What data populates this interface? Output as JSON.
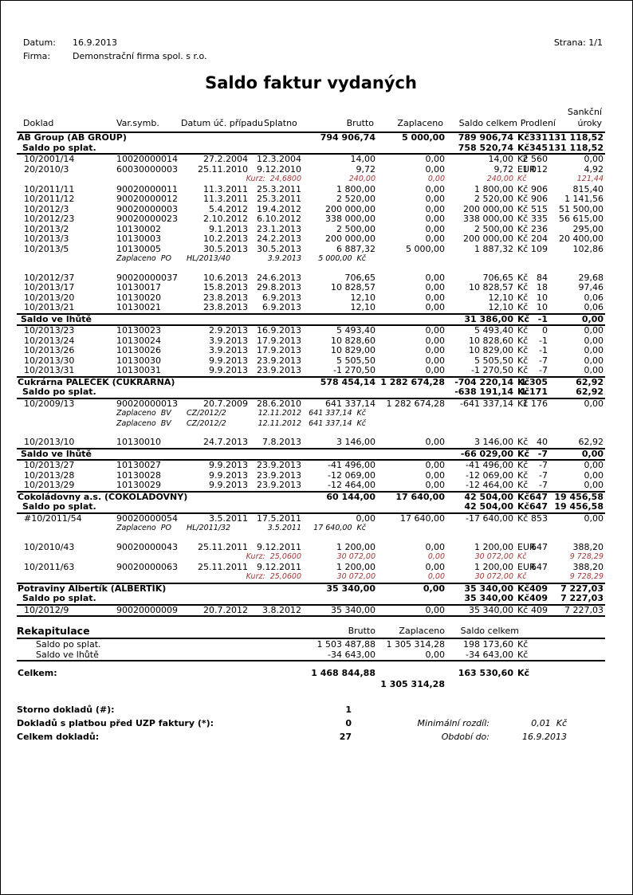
{
  "header": {
    "date_label": "Datum:",
    "date_value": "16.9.2013",
    "firm_label": "Firma:",
    "firm_value": "Demonstrační firma spol. s r.o.",
    "page_info": "Strana: 1/1",
    "title": "Saldo faktur vydaných"
  },
  "colors": {
    "kurz_red": "#A03636"
  },
  "table": {
    "head": {
      "sankcni": "Sankční",
      "doklad": "Doklad",
      "varsymb": "Var.symb.",
      "datum": "Datum úč. případu",
      "splatno": "Splatno",
      "brutto": "Brutto",
      "zaplaceno": "Zaplaceno",
      "saldo": "Saldo celkem",
      "prodleni": "Prodlení",
      "uroky": "úroky"
    },
    "rows": [
      {
        "t": "group",
        "name": "AB Group (AB GROUP)",
        "brutto": "794 906,74",
        "zapl": "5 000,00",
        "saldo": "789 906,74",
        "cur": "Kč",
        "prod": "331",
        "uroky": "131 118,52"
      },
      {
        "t": "gsub",
        "label": "Saldo po splat.",
        "saldo": "758 520,74",
        "cur": "Kč",
        "prod": "345",
        "uroky": "131 118,52"
      },
      {
        "t": "hr"
      },
      {
        "t": "d",
        "doklad": "10/2001/14",
        "vs": "10020000014",
        "datum": "27.2.2004",
        "splatno": "12.3.2004",
        "brutto": "14,00",
        "zapl": "0,00",
        "saldo": "14,00",
        "cur": "Kč",
        "prod": "2 560",
        "uroky": "0,00"
      },
      {
        "t": "d",
        "doklad": "20/2010/3",
        "vs": "60030000003",
        "datum": "25.11.2010",
        "splatno": "9.12.2010",
        "brutto": "9,72",
        "zapl": "0,00",
        "saldo": "9,72",
        "cur": "EUR",
        "prod": "1 012",
        "uroky": "4,92"
      },
      {
        "t": "kurz",
        "label": "Kurz:  24,6800",
        "brutto": "240,00",
        "zapl": "0,00",
        "saldo": "240,00",
        "cur": "Kč",
        "uroky": "121,44"
      },
      {
        "t": "d",
        "doklad": "10/2011/11",
        "vs": "90020000011",
        "datum": "11.3.2011",
        "splatno": "25.3.2011",
        "brutto": "1 800,00",
        "zapl": "0,00",
        "saldo": "1 800,00",
        "cur": "Kč",
        "prod": "906",
        "uroky": "815,40"
      },
      {
        "t": "d",
        "doklad": "10/2011/12",
        "vs": "90020000012",
        "datum": "11.3.2011",
        "splatno": "25.3.2011",
        "brutto": "2 520,00",
        "zapl": "0,00",
        "saldo": "2 520,00",
        "cur": "Kč",
        "prod": "906",
        "uroky": "1 141,56"
      },
      {
        "t": "d",
        "doklad": "10/2012/3",
        "vs": "90020000003",
        "datum": "5.4.2012",
        "splatno": "19.4.2012",
        "brutto": "200 000,00",
        "zapl": "0,00",
        "saldo": "200 000,00",
        "cur": "Kč",
        "prod": "515",
        "uroky": "51 500,00"
      },
      {
        "t": "d",
        "doklad": "10/2012/23",
        "vs": "90020000023",
        "datum": "2.10.2012",
        "splatno": "6.10.2012",
        "brutto": "338 000,00",
        "zapl": "0,00",
        "saldo": "338 000,00",
        "cur": "Kč",
        "prod": "335",
        "uroky": "56 615,00"
      },
      {
        "t": "d",
        "doklad": "10/2013/2",
        "vs": "10130002",
        "datum": "9.1.2013",
        "splatno": "23.1.2013",
        "brutto": "2 500,00",
        "zapl": "0,00",
        "saldo": "2 500,00",
        "cur": "Kč",
        "prod": "236",
        "uroky": "295,00"
      },
      {
        "t": "d",
        "doklad": "10/2013/3",
        "vs": "10130003",
        "datum": "10.2.2013",
        "splatno": "24.2.2013",
        "brutto": "200 000,00",
        "zapl": "0,00",
        "saldo": "200 000,00",
        "cur": "Kč",
        "prod": "204",
        "uroky": "20 400,00"
      },
      {
        "t": "d",
        "doklad": "10/2013/5",
        "vs": "10130005",
        "datum": "30.5.2013",
        "splatno": "30.5.2013",
        "brutto": "6 887,32",
        "zapl": "5 000,00",
        "saldo": "1 887,32",
        "cur": "Kč",
        "prod": "109",
        "uroky": "102,86"
      },
      {
        "t": "pay",
        "label": "Zaplaceno  PO",
        "doc": "HL/2013/40",
        "datum": "3.9.2013",
        "amount": "5 000,00  Kč"
      },
      {
        "t": "sp"
      },
      {
        "t": "d",
        "doklad": "10/2012/37",
        "vs": "90020000037",
        "datum": "10.6.2013",
        "splatno": "24.6.2013",
        "brutto": "706,65",
        "zapl": "0,00",
        "saldo": "706,65",
        "cur": "Kč",
        "prod": "84",
        "uroky": "29,68"
      },
      {
        "t": "d",
        "doklad": "10/2013/17",
        "vs": "10130017",
        "datum": "15.8.2013",
        "splatno": "29.8.2013",
        "brutto": "10 828,57",
        "zapl": "0,00",
        "saldo": "10 828,57",
        "cur": "Kč",
        "prod": "18",
        "uroky": "97,46"
      },
      {
        "t": "d",
        "doklad": "10/2013/20",
        "vs": "10130020",
        "datum": "23.8.2013",
        "splatno": "6.9.2013",
        "brutto": "12,10",
        "zapl": "0,00",
        "saldo": "12,10",
        "cur": "Kč",
        "prod": "10",
        "uroky": "0,06"
      },
      {
        "t": "d",
        "doklad": "10/2013/21",
        "vs": "10130021",
        "datum": "23.8.2013",
        "splatno": "6.9.2013",
        "brutto": "12,10",
        "zapl": "0,00",
        "saldo": "12,10",
        "cur": "Kč",
        "prod": "10",
        "uroky": "0,06"
      },
      {
        "t": "hr"
      },
      {
        "t": "sum",
        "label": "Saldo ve lhůtě",
        "saldo": "31 386,00",
        "cur": "Kč",
        "prod": "-1",
        "uroky": "0,00"
      },
      {
        "t": "hr"
      },
      {
        "t": "d",
        "doklad": "10/2013/23",
        "vs": "10130023",
        "datum": "2.9.2013",
        "splatno": "16.9.2013",
        "brutto": "5 493,40",
        "zapl": "0,00",
        "saldo": "5 493,40",
        "cur": "Kč",
        "prod": "0",
        "uroky": "0,00"
      },
      {
        "t": "d",
        "doklad": "10/2013/24",
        "vs": "10130024",
        "datum": "3.9.2013",
        "splatno": "17.9.2013",
        "brutto": "10 828,60",
        "zapl": "0,00",
        "saldo": "10 828,60",
        "cur": "Kč",
        "prod": "-1",
        "uroky": "0,00"
      },
      {
        "t": "d",
        "doklad": "10/2013/26",
        "vs": "10130026",
        "datum": "3.9.2013",
        "splatno": "17.9.2013",
        "brutto": "10 829,00",
        "zapl": "0,00",
        "saldo": "10 829,00",
        "cur": "Kč",
        "prod": "-1",
        "uroky": "0,00"
      },
      {
        "t": "d",
        "doklad": "10/2013/30",
        "vs": "10130030",
        "datum": "9.9.2013",
        "splatno": "23.9.2013",
        "brutto": "5 505,50",
        "zapl": "0,00",
        "saldo": "5 505,50",
        "cur": "Kč",
        "prod": "-7",
        "uroky": "0,00"
      },
      {
        "t": "d",
        "doklad": "10/2013/31",
        "vs": "10130031",
        "datum": "9.9.2013",
        "splatno": "23.9.2013",
        "brutto": "-1 270,50",
        "zapl": "0,00",
        "saldo": "-1 270,50",
        "cur": "Kč",
        "prod": "-7",
        "uroky": "0,00"
      },
      {
        "t": "hr"
      },
      {
        "t": "group",
        "name": "Cukrárna PALEČEK (CUKRÁRNA)",
        "brutto": "578 454,14",
        "zapl": "1 282 674,28",
        "saldo": "-704 220,14",
        "cur": "Kč",
        "prod": "1 305",
        "uroky": "62,92"
      },
      {
        "t": "gsub",
        "label": "Saldo po splat.",
        "saldo": "-638 191,14",
        "cur": "Kč",
        "prod": "1 171",
        "uroky": "62,92"
      },
      {
        "t": "hr"
      },
      {
        "t": "d",
        "doklad": "10/2009/13",
        "vs": "90020000013",
        "datum": "20.7.2009",
        "splatno": "28.6.2010",
        "brutto": "641 337,14",
        "zapl": "1 282 674,28",
        "saldo": "-641 337,14",
        "cur": "Kč",
        "prod": "1 176",
        "uroky": "0,00"
      },
      {
        "t": "pay",
        "label": "Zaplaceno  BV",
        "doc": "CZ/2012/2",
        "datum": "12.11.2012",
        "amount": "641 337,14  Kč"
      },
      {
        "t": "pay",
        "label": "Zaplaceno  BV",
        "doc": "CZ/2012/2",
        "datum": "12.11.2012",
        "amount": "641 337,14  Kč"
      },
      {
        "t": "sp"
      },
      {
        "t": "d",
        "doklad": "10/2013/10",
        "vs": "10130010",
        "datum": "24.7.2013",
        "splatno": "7.8.2013",
        "brutto": "3 146,00",
        "zapl": "0,00",
        "saldo": "3 146,00",
        "cur": "Kč",
        "prod": "40",
        "uroky": "62,92"
      },
      {
        "t": "hr"
      },
      {
        "t": "sum",
        "label": "Saldo ve lhůtě",
        "saldo": "-66 029,00",
        "cur": "Kč",
        "prod": "-7",
        "uroky": "0,00"
      },
      {
        "t": "hr"
      },
      {
        "t": "d",
        "doklad": "10/2013/27",
        "vs": "10130027",
        "datum": "9.9.2013",
        "splatno": "23.9.2013",
        "brutto": "-41 496,00",
        "zapl": "0,00",
        "saldo": "-41 496,00",
        "cur": "Kč",
        "prod": "-7",
        "uroky": "0,00"
      },
      {
        "t": "d",
        "doklad": "10/2013/28",
        "vs": "10130028",
        "datum": "9.9.2013",
        "splatno": "23.9.2013",
        "brutto": "-12 069,00",
        "zapl": "0,00",
        "saldo": "-12 069,00",
        "cur": "Kč",
        "prod": "-7",
        "uroky": "0,00"
      },
      {
        "t": "d",
        "doklad": "10/2013/29",
        "vs": "10130029",
        "datum": "9.9.2013",
        "splatno": "23.9.2013",
        "brutto": "-12 464,00",
        "zapl": "0,00",
        "saldo": "-12 464,00",
        "cur": "Kč",
        "prod": "-7",
        "uroky": "0,00"
      },
      {
        "t": "hr"
      },
      {
        "t": "group",
        "name": "Čokoládovny a.s. (ČOKOLÁDOVNY)",
        "brutto": "60 144,00",
        "zapl": "17 640,00",
        "saldo": "42 504,00",
        "cur": "Kč",
        "prod": "647",
        "uroky": "19 456,58"
      },
      {
        "t": "gsub",
        "label": "Saldo po splat.",
        "saldo": "42 504,00",
        "cur": "Kč",
        "prod": "647",
        "uroky": "19 456,58"
      },
      {
        "t": "hr"
      },
      {
        "t": "d",
        "doklad": "#10/2011/54",
        "vs": "90020000054",
        "datum": "3.5.2011",
        "splatno": "17.5.2011",
        "brutto": "0,00",
        "zapl": "17 640,00",
        "saldo": "-17 640,00",
        "cur": "Kč",
        "prod": "853",
        "uroky": "0,00"
      },
      {
        "t": "pay",
        "label": "Zaplaceno  PO",
        "doc": "HL/2011/32",
        "datum": "3.5.2011",
        "amount": "17 640,00  Kč"
      },
      {
        "t": "sp"
      },
      {
        "t": "d",
        "doklad": "10/2010/43",
        "vs": "90020000043",
        "datum": "25.11.2011",
        "splatno": "9.12.2011",
        "brutto": "1 200,00",
        "zapl": "0,00",
        "saldo": "1 200,00",
        "cur": "EUR",
        "prod": "647",
        "uroky": "388,20"
      },
      {
        "t": "kurz",
        "label": "Kurz:  25,0600",
        "brutto": "30 072,00",
        "zapl": "0,00",
        "saldo": "30 072,00",
        "cur": "Kč",
        "uroky": "9 728,29"
      },
      {
        "t": "d",
        "doklad": "10/2011/63",
        "vs": "90020000063",
        "datum": "25.11.2011",
        "splatno": "9.12.2011",
        "brutto": "1 200,00",
        "zapl": "0,00",
        "saldo": "1 200,00",
        "cur": "EUR",
        "prod": "647",
        "uroky": "388,20"
      },
      {
        "t": "kurz",
        "label": "Kurz:  25,0600",
        "brutto": "30 072,00",
        "zapl": "0,00",
        "saldo": "30 072,00",
        "cur": "Kč",
        "uroky": "9 728,29"
      },
      {
        "t": "hr"
      },
      {
        "t": "group",
        "name": "Potraviny Albertík (ALBERTÍK)",
        "brutto": "35 340,00",
        "zapl": "0,00",
        "saldo": "35 340,00",
        "cur": "Kč",
        "prod": "409",
        "uroky": "7 227,03"
      },
      {
        "t": "gsub",
        "label": "Saldo po splat.",
        "saldo": "35 340,00",
        "cur": "Kč",
        "prod": "409",
        "uroky": "7 227,03"
      },
      {
        "t": "hr"
      },
      {
        "t": "d",
        "doklad": "10/2012/9",
        "vs": "90020000009",
        "datum": "20.7.2012",
        "splatno": "3.8.2012",
        "brutto": "35 340,00",
        "zapl": "0,00",
        "saldo": "35 340,00",
        "cur": "Kč",
        "prod": "409",
        "uroky": "7 227,03"
      },
      {
        "t": "hr"
      }
    ]
  },
  "recap": {
    "title": "Rekapitulace",
    "col_brutto": "Brutto",
    "col_zaplaceno": "Zaplaceno",
    "col_saldo": "Saldo celkem",
    "rows": [
      {
        "label": "Saldo po splat.",
        "brutto": "1 503 487,88",
        "zapl": "1 305 314,28",
        "saldo": "198 173,60",
        "cur": "Kč"
      },
      {
        "label": "Saldo ve lhůtě",
        "brutto": "-34 643,00",
        "zapl": "0,00",
        "saldo": "-34 643,00",
        "cur": "Kč"
      }
    ]
  },
  "totals": {
    "label": "Celkem:",
    "brutto": "1 468 844,88",
    "zaplaceno": "1 305 314,28",
    "saldo": "163 530,60",
    "cur": "Kč"
  },
  "footer": {
    "rows": [
      {
        "label": "Storno dokladů (#):",
        "value": "1",
        "rlabel": "",
        "rvalue": ""
      },
      {
        "label": "Dokladů s platbou před UZP faktury (*):",
        "value": "0",
        "rlabel": "Minimální rozdíl:",
        "rvalue": "0,01  Kč"
      },
      {
        "label": "Celkem dokladů:",
        "value": "27",
        "rlabel": "Období do:",
        "rvalue": "16.9.2013"
      }
    ]
  }
}
